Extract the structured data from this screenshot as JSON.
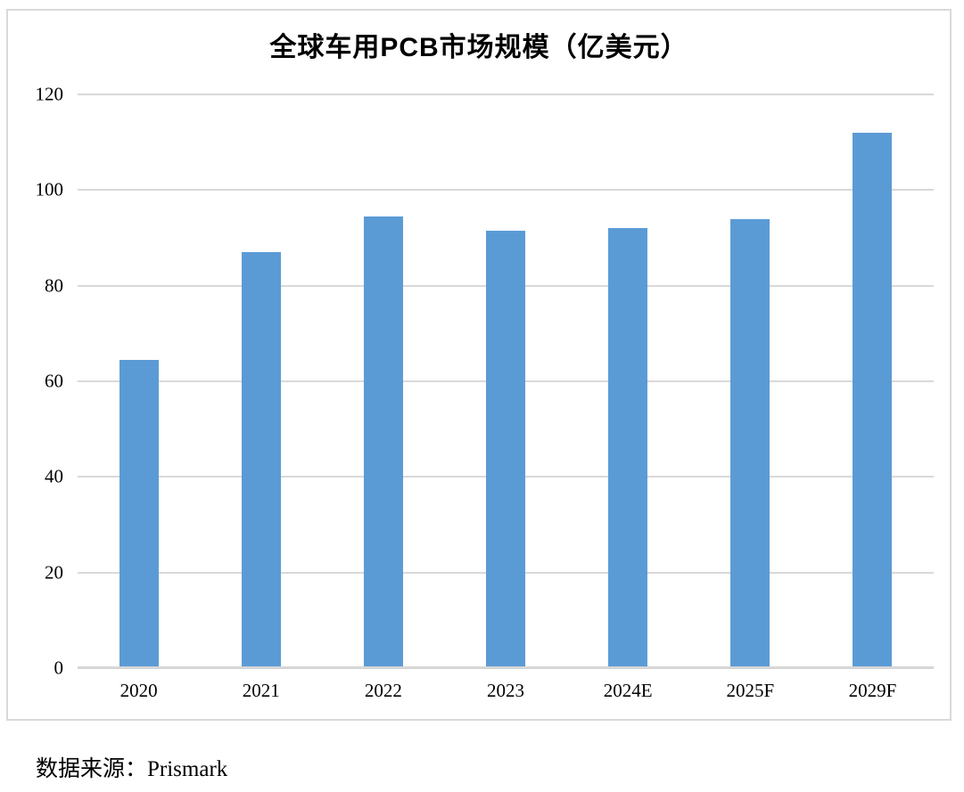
{
  "chart_data": {
    "type": "bar",
    "title": "全球车用PCB市场规模（亿美元）",
    "categories": [
      "2020",
      "2021",
      "2022",
      "2023",
      "2024E",
      "2025F",
      "2029F"
    ],
    "values": [
      64.5,
      87,
      94.5,
      91.5,
      92,
      94,
      112
    ],
    "xlabel": "",
    "ylabel": "",
    "ylim": [
      0,
      120
    ],
    "yticks": [
      0,
      20,
      40,
      60,
      80,
      100,
      120
    ],
    "grid": true,
    "legend": "none",
    "bar_color": "#5b9bd5",
    "gridline_color": "#d9d9d9",
    "axis_line_color": "#d6d6d6"
  },
  "source": {
    "label": "数据来源：Prismark"
  }
}
